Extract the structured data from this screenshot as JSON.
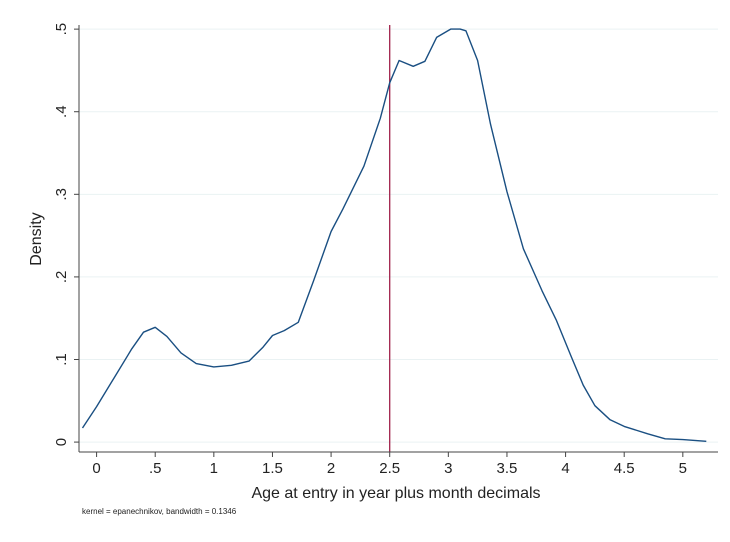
{
  "chart_data": {
    "type": "line",
    "title": "",
    "xlabel": "Age at entry in year plus month decimals",
    "ylabel": "Density",
    "note": "kernel = epanechnikov, bandwidth = 0.1346",
    "xlim": [
      -0.15,
      5.3
    ],
    "ylim": [
      -0.012,
      0.505
    ],
    "xticks": [
      0,
      0.5,
      1,
      1.5,
      2,
      2.5,
      3,
      3.5,
      4,
      4.5,
      5
    ],
    "xtick_labels": [
      "0",
      ".5",
      "1",
      "1.5",
      "2",
      "2.5",
      "3",
      "3.5",
      "4",
      "4.5",
      "5"
    ],
    "yticks": [
      0,
      0.1,
      0.2,
      0.3,
      0.4,
      0.5
    ],
    "ytick_labels": [
      "0",
      ".1",
      ".2",
      ".3",
      ".4",
      ".5"
    ],
    "grid": true,
    "reference_line": {
      "x": 2.5,
      "color": "#a0204a"
    },
    "series": [
      {
        "line_color": "#1a4f82",
        "points": [
          [
            -0.12,
            0.017
          ],
          [
            0.0,
            0.043
          ],
          [
            0.15,
            0.078
          ],
          [
            0.3,
            0.113
          ],
          [
            0.4,
            0.133
          ],
          [
            0.5,
            0.139
          ],
          [
            0.6,
            0.128
          ],
          [
            0.72,
            0.108
          ],
          [
            0.85,
            0.095
          ],
          [
            1.0,
            0.091
          ],
          [
            1.15,
            0.093
          ],
          [
            1.3,
            0.098
          ],
          [
            1.42,
            0.115
          ],
          [
            1.5,
            0.129
          ],
          [
            1.6,
            0.135
          ],
          [
            1.72,
            0.145
          ],
          [
            1.85,
            0.195
          ],
          [
            2.0,
            0.255
          ],
          [
            2.1,
            0.282
          ],
          [
            2.28,
            0.334
          ],
          [
            2.42,
            0.392
          ],
          [
            2.5,
            0.435
          ],
          [
            2.58,
            0.462
          ],
          [
            2.7,
            0.455
          ],
          [
            2.8,
            0.461
          ],
          [
            2.9,
            0.49
          ],
          [
            3.02,
            0.5
          ],
          [
            3.1,
            0.5
          ],
          [
            3.15,
            0.498
          ],
          [
            3.25,
            0.462
          ],
          [
            3.36,
            0.385
          ],
          [
            3.5,
            0.303
          ],
          [
            3.64,
            0.234
          ],
          [
            3.8,
            0.183
          ],
          [
            3.92,
            0.148
          ],
          [
            4.05,
            0.103
          ],
          [
            4.15,
            0.069
          ],
          [
            4.25,
            0.044
          ],
          [
            4.38,
            0.027
          ],
          [
            4.5,
            0.019
          ],
          [
            4.7,
            0.01
          ],
          [
            4.85,
            0.004
          ],
          [
            5.0,
            0.003
          ],
          [
            5.2,
            0.001
          ]
        ]
      }
    ]
  },
  "style": {
    "axis_color": "#444444",
    "grid_color": "#eaf2f3",
    "tick_text_color": "#222222",
    "plot_background": "#ffffff"
  }
}
